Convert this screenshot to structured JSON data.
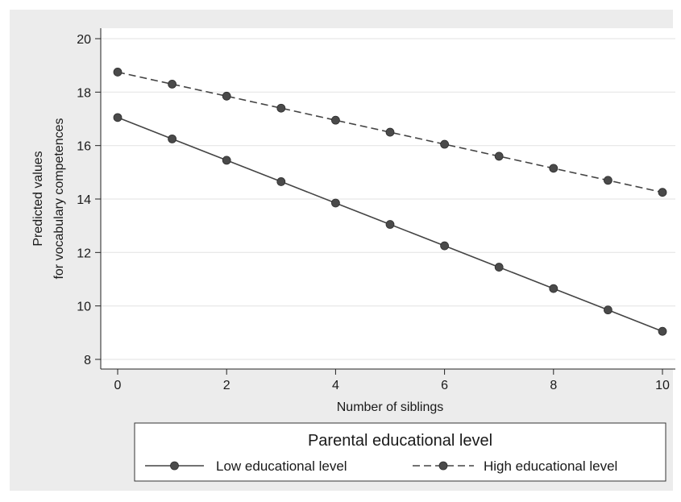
{
  "chart_data": {
    "type": "line",
    "title": "",
    "xlabel": "Number of siblings",
    "ylabel_lines": [
      "Predicted values",
      "for vocabulary competences"
    ],
    "x": [
      0,
      1,
      2,
      3,
      4,
      5,
      6,
      7,
      8,
      9,
      10
    ],
    "xlim": [
      0,
      10
    ],
    "ylim": [
      7.6,
      20.3
    ],
    "xticks": [
      "0",
      "2",
      "4",
      "6",
      "8",
      "10"
    ],
    "yticks": [
      "8",
      "10",
      "12",
      "14",
      "16",
      "18",
      "20"
    ],
    "grid": true,
    "legend_title": "Parental educational level",
    "legend_position": "bottom",
    "series": [
      {
        "name": "Low educational level",
        "style": "solid",
        "marker": "circle",
        "values": [
          17.05,
          16.25,
          15.45,
          14.65,
          13.85,
          13.05,
          12.25,
          11.45,
          10.65,
          9.85,
          9.05
        ]
      },
      {
        "name": "High educational level",
        "style": "dashed",
        "marker": "circle",
        "values": [
          18.75,
          18.3,
          17.85,
          17.4,
          16.95,
          16.5,
          16.05,
          15.6,
          15.15,
          14.7,
          14.25
        ]
      }
    ],
    "colors": {
      "background": "#ececec",
      "plot_background": "#ffffff",
      "grid": "#e6e6e6",
      "line": "#444444",
      "marker": "#4a4a4a",
      "legend_box": "#ffffff",
      "legend_border": "#333333"
    }
  }
}
